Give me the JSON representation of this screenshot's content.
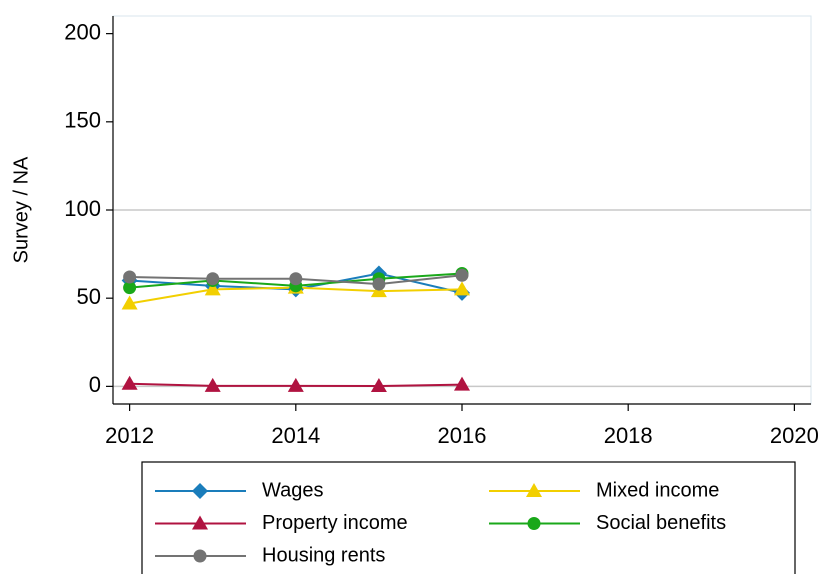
{
  "chart_data": {
    "type": "line",
    "y_label": "Survey / NA",
    "x": [
      2012,
      2013,
      2014,
      2015,
      2016
    ],
    "xlim": [
      2011.8,
      2020.2
    ],
    "xticks": [
      2012,
      2014,
      2016,
      2018,
      2020
    ],
    "ylim": [
      -10,
      210
    ],
    "yticks": [
      0,
      50,
      100,
      150,
      200
    ],
    "ygrid": [
      0,
      100
    ],
    "legend": "bottom",
    "series": [
      {
        "name": "Wages",
        "color": "#1a7dbb",
        "marker": "diamond",
        "values": [
          60,
          57,
          55,
          64,
          53
        ]
      },
      {
        "name": "Mixed income",
        "color": "#f2cf00",
        "marker": "triangle",
        "values": [
          47,
          55,
          56,
          54,
          55
        ]
      },
      {
        "name": "Property income",
        "color": "#b01340",
        "marker": "triangle",
        "values": [
          1.5,
          0.3,
          0.3,
          0.2,
          1
        ]
      },
      {
        "name": "Social benefits",
        "color": "#1aa81a",
        "marker": "circle",
        "values": [
          56,
          60,
          57,
          61,
          64
        ]
      },
      {
        "name": "Housing rents",
        "color": "#737373",
        "marker": "circle",
        "values": [
          62,
          61,
          61,
          58,
          63
        ]
      }
    ]
  }
}
